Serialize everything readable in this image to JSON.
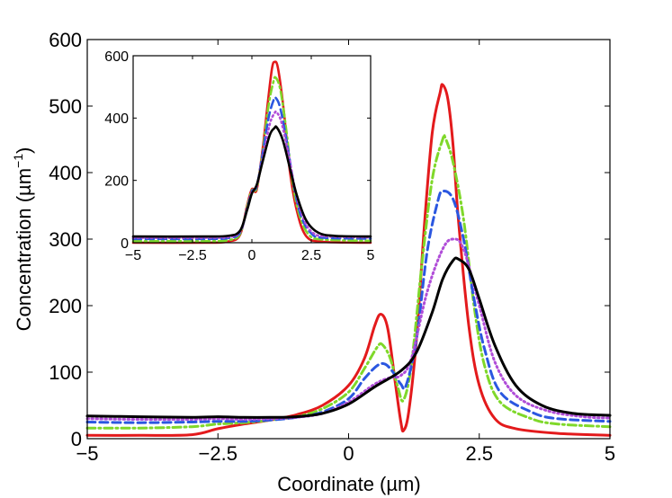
{
  "chart_data": [
    {
      "type": "line",
      "role": "main",
      "xlabel": "Coordinate (µm)",
      "ylabel": "Concentration (µm",
      "ylabel_superscript": "−1",
      "ylabel_suffix": ")",
      "xlim": [
        -5,
        5
      ],
      "ylim": [
        0,
        600
      ],
      "xticks": [
        -5,
        -2.5,
        0,
        2.5,
        5
      ],
      "xtick_labels": [
        "−5",
        "−2.5",
        "0",
        "2.5",
        "5"
      ],
      "yticks": [
        0,
        100,
        200,
        300,
        400,
        500,
        600
      ],
      "ytick_labels": [
        "0",
        "100",
        "200",
        "300",
        "400",
        "500",
        "600"
      ],
      "grid": false,
      "series": [
        {
          "name": "red solid",
          "color": "#e31a1c",
          "dash": "solid",
          "points": [
            [
              -5,
              5
            ],
            [
              -4,
              5
            ],
            [
              -3,
              6
            ],
            [
              -2.5,
              15
            ],
            [
              -2,
              22
            ],
            [
              -1.5,
              28
            ],
            [
              -1,
              36
            ],
            [
              -0.5,
              50
            ],
            [
              0,
              80
            ],
            [
              0.3,
              120
            ],
            [
              0.5,
              170
            ],
            [
              0.62,
              187
            ],
            [
              0.75,
              165
            ],
            [
              0.9,
              80
            ],
            [
              1.0,
              25
            ],
            [
              1.05,
              12
            ],
            [
              1.15,
              40
            ],
            [
              1.3,
              150
            ],
            [
              1.45,
              320
            ],
            [
              1.6,
              460
            ],
            [
              1.75,
              520
            ],
            [
              1.8,
              532
            ],
            [
              1.9,
              510
            ],
            [
              2.0,
              440
            ],
            [
              2.1,
              330
            ],
            [
              2.3,
              170
            ],
            [
              2.5,
              80
            ],
            [
              2.8,
              30
            ],
            [
              3.2,
              15
            ],
            [
              4,
              8
            ],
            [
              5,
              5
            ]
          ]
        },
        {
          "name": "green dash-dot",
          "color": "#7fd82a",
          "dash": "dashdot",
          "points": [
            [
              -5,
              16
            ],
            [
              -4,
              16
            ],
            [
              -3,
              18
            ],
            [
              -2.5,
              22
            ],
            [
              -2,
              24
            ],
            [
              -1.5,
              28
            ],
            [
              -1,
              33
            ],
            [
              -0.5,
              45
            ],
            [
              0,
              70
            ],
            [
              0.3,
              105
            ],
            [
              0.55,
              138
            ],
            [
              0.65,
              141
            ],
            [
              0.8,
              120
            ],
            [
              0.95,
              75
            ],
            [
              1.05,
              58
            ],
            [
              1.2,
              110
            ],
            [
              1.4,
              260
            ],
            [
              1.6,
              390
            ],
            [
              1.8,
              450
            ],
            [
              1.85,
              452
            ],
            [
              2.0,
              415
            ],
            [
              2.2,
              330
            ],
            [
              2.4,
              200
            ],
            [
              2.6,
              110
            ],
            [
              2.9,
              55
            ],
            [
              3.5,
              30
            ],
            [
              4,
              22
            ],
            [
              5,
              18
            ]
          ]
        },
        {
          "name": "blue dashed",
          "color": "#2b57e0",
          "dash": "dashed",
          "points": [
            [
              -5,
              25
            ],
            [
              -4,
              24
            ],
            [
              -3,
              25
            ],
            [
              -2.5,
              26
            ],
            [
              -2,
              26
            ],
            [
              -1.5,
              28
            ],
            [
              -1,
              32
            ],
            [
              -0.5,
              40
            ],
            [
              0,
              60
            ],
            [
              0.3,
              90
            ],
            [
              0.55,
              110
            ],
            [
              0.7,
              112
            ],
            [
              0.85,
              100
            ],
            [
              1.0,
              82
            ],
            [
              1.1,
              80
            ],
            [
              1.3,
              150
            ],
            [
              1.5,
              280
            ],
            [
              1.7,
              355
            ],
            [
              1.8,
              372
            ],
            [
              2.0,
              360
            ],
            [
              2.2,
              300
            ],
            [
              2.4,
              210
            ],
            [
              2.6,
              135
            ],
            [
              2.9,
              70
            ],
            [
              3.5,
              40
            ],
            [
              4,
              30
            ],
            [
              5,
              26
            ]
          ]
        },
        {
          "name": "purple dotted",
          "color": "#b04dd8",
          "dash": "dotted",
          "points": [
            [
              -5,
              30
            ],
            [
              -4,
              29
            ],
            [
              -3,
              29
            ],
            [
              -2.5,
              30
            ],
            [
              -2,
              29
            ],
            [
              -1.5,
              30
            ],
            [
              -1,
              32
            ],
            [
              -0.5,
              38
            ],
            [
              0,
              55
            ],
            [
              0.5,
              82
            ],
            [
              0.8,
              92
            ],
            [
              1.0,
              95
            ],
            [
              1.2,
              120
            ],
            [
              1.5,
              220
            ],
            [
              1.8,
              285
            ],
            [
              2.0,
              300
            ],
            [
              2.2,
              285
            ],
            [
              2.5,
              200
            ],
            [
              2.8,
              115
            ],
            [
              3.2,
              65
            ],
            [
              3.8,
              42
            ],
            [
              4.5,
              33
            ],
            [
              5,
              31
            ]
          ]
        },
        {
          "name": "black solid",
          "color": "#000000",
          "dash": "solid",
          "points": [
            [
              -5,
              34
            ],
            [
              -4,
              33
            ],
            [
              -3,
              32
            ],
            [
              -2.5,
              33
            ],
            [
              -2,
              32
            ],
            [
              -1.5,
              32
            ],
            [
              -1,
              33
            ],
            [
              -0.5,
              38
            ],
            [
              0,
              52
            ],
            [
              0.5,
              78
            ],
            [
              1.0,
              102
            ],
            [
              1.3,
              130
            ],
            [
              1.6,
              190
            ],
            [
              1.8,
              240
            ],
            [
              2.0,
              268
            ],
            [
              2.1,
              270
            ],
            [
              2.3,
              255
            ],
            [
              2.5,
              210
            ],
            [
              2.8,
              140
            ],
            [
              3.2,
              80
            ],
            [
              3.7,
              50
            ],
            [
              4.3,
              38
            ],
            [
              5,
              35
            ]
          ]
        }
      ]
    },
    {
      "type": "line",
      "role": "inset",
      "xlim": [
        -5,
        5
      ],
      "ylim": [
        0,
        600
      ],
      "xticks": [
        -5,
        -2.5,
        0,
        2.5,
        5
      ],
      "xtick_labels": [
        "−5",
        "−2.5",
        "0",
        "2.5",
        "5"
      ],
      "yticks": [
        0,
        200,
        400,
        600
      ],
      "ytick_labels": [
        "0",
        "200",
        "400",
        "600"
      ],
      "grid": false,
      "series": [
        {
          "name": "red solid",
          "color": "#e31a1c",
          "dash": "solid",
          "points": [
            [
              -5,
              0
            ],
            [
              -2,
              0
            ],
            [
              -1,
              4
            ],
            [
              -0.5,
              25
            ],
            [
              -0.2,
              120
            ],
            [
              0,
              172
            ],
            [
              0.2,
              170
            ],
            [
              0.45,
              300
            ],
            [
              0.7,
              470
            ],
            [
              0.85,
              560
            ],
            [
              0.95,
              580
            ],
            [
              1.1,
              560
            ],
            [
              1.35,
              420
            ],
            [
              1.6,
              230
            ],
            [
              1.9,
              100
            ],
            [
              2.3,
              20
            ],
            [
              3,
              3
            ],
            [
              5,
              0
            ]
          ]
        },
        {
          "name": "green dash-dot",
          "color": "#7fd82a",
          "dash": "dashdot",
          "points": [
            [
              -5,
              5
            ],
            [
              -2,
              5
            ],
            [
              -1,
              8
            ],
            [
              -0.5,
              28
            ],
            [
              -0.2,
              115
            ],
            [
              0,
              168
            ],
            [
              0.2,
              175
            ],
            [
              0.45,
              290
            ],
            [
              0.7,
              440
            ],
            [
              0.9,
              515
            ],
            [
              1.0,
              530
            ],
            [
              1.2,
              490
            ],
            [
              1.45,
              360
            ],
            [
              1.7,
              200
            ],
            [
              2.0,
              90
            ],
            [
              2.4,
              25
            ],
            [
              3,
              10
            ],
            [
              5,
              6
            ]
          ]
        },
        {
          "name": "blue dashed",
          "color": "#2b57e0",
          "dash": "dashed",
          "points": [
            [
              -5,
              12
            ],
            [
              -2,
              12
            ],
            [
              -1,
              15
            ],
            [
              -0.5,
              32
            ],
            [
              -0.2,
              110
            ],
            [
              0,
              165
            ],
            [
              0.2,
              180
            ],
            [
              0.45,
              285
            ],
            [
              0.7,
              400
            ],
            [
              0.9,
              455
            ],
            [
              1.0,
              465
            ],
            [
              1.2,
              430
            ],
            [
              1.5,
              310
            ],
            [
              1.8,
              170
            ],
            [
              2.1,
              80
            ],
            [
              2.5,
              30
            ],
            [
              3,
              16
            ],
            [
              5,
              13
            ]
          ]
        },
        {
          "name": "purple dotted",
          "color": "#b04dd8",
          "dash": "dotted",
          "points": [
            [
              -5,
              16
            ],
            [
              -2,
              16
            ],
            [
              -1,
              18
            ],
            [
              -0.5,
              35
            ],
            [
              -0.2,
              108
            ],
            [
              0,
              162
            ],
            [
              0.2,
              182
            ],
            [
              0.45,
              270
            ],
            [
              0.75,
              380
            ],
            [
              0.95,
              415
            ],
            [
              1.05,
              418
            ],
            [
              1.25,
              385
            ],
            [
              1.55,
              280
            ],
            [
              1.85,
              160
            ],
            [
              2.2,
              72
            ],
            [
              2.6,
              30
            ],
            [
              3.2,
              20
            ],
            [
              5,
              17
            ]
          ]
        },
        {
          "name": "black solid",
          "color": "#000000",
          "dash": "solid",
          "points": [
            [
              -5,
              20
            ],
            [
              -2,
              20
            ],
            [
              -1,
              22
            ],
            [
              -0.5,
              38
            ],
            [
              -0.2,
              105
            ],
            [
              0,
              158
            ],
            [
              0.2,
              185
            ],
            [
              0.45,
              260
            ],
            [
              0.75,
              345
            ],
            [
              0.95,
              368
            ],
            [
              1.05,
              370
            ],
            [
              1.3,
              330
            ],
            [
              1.6,
              240
            ],
            [
              1.9,
              150
            ],
            [
              2.3,
              70
            ],
            [
              2.8,
              32
            ],
            [
              3.5,
              22
            ],
            [
              5,
              20
            ]
          ]
        }
      ]
    }
  ]
}
